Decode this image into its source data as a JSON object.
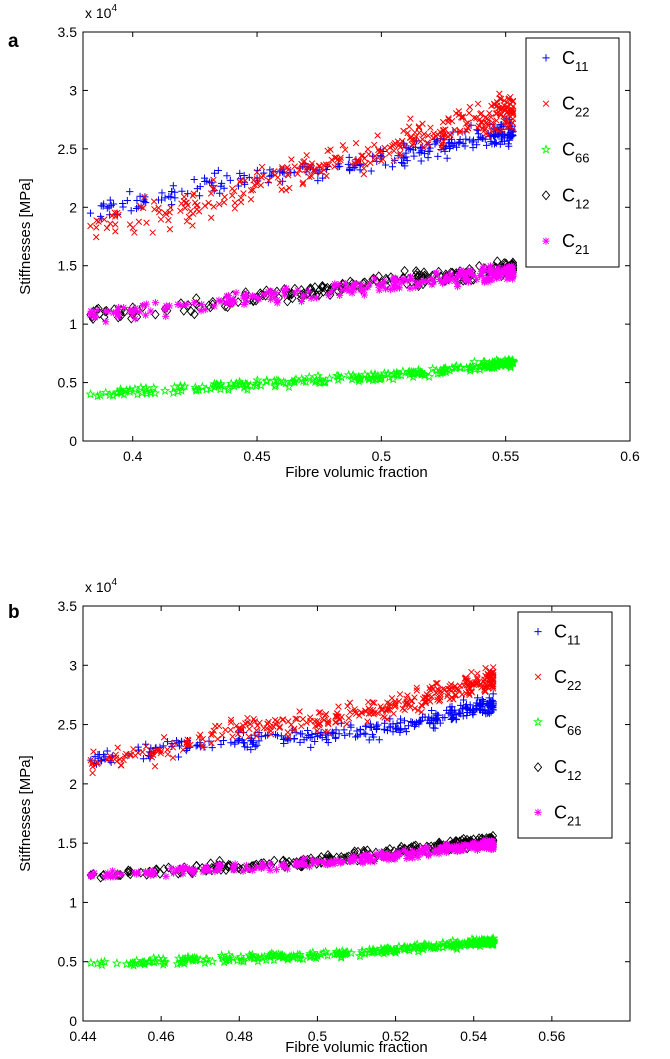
{
  "chart_data": [
    {
      "type": "scatter",
      "panel_label": "a",
      "xlabel": "Fibre volumic fraction",
      "ylabel": "Stiffnesses [MPa]",
      "y_exponent_label": "x 10",
      "y_exponent": "4",
      "xlim": [
        0.38,
        0.6
      ],
      "ylim": [
        0,
        35000
      ],
      "xticks": [
        0.4,
        0.45,
        0.5,
        0.55,
        0.6
      ],
      "xtick_labels": [
        "0.4",
        "0.45",
        "0.5",
        "0.55",
        "0.6"
      ],
      "yticks": [
        0,
        5000,
        10000,
        15000,
        20000,
        25000,
        30000,
        35000
      ],
      "ytick_labels": [
        "0",
        "0.5",
        "1",
        "1.5",
        "2",
        "2.5",
        "3",
        "3.5"
      ],
      "grid": false,
      "legend_position": "top-right",
      "series": [
        {
          "name": "C11",
          "sub": "11",
          "base": "C",
          "marker": "plus",
          "color": "#0000ff",
          "trend": [
            [
              0.383,
              19500
            ],
            [
              0.413,
              20800
            ],
            [
              0.426,
              21600
            ],
            [
              0.45,
              22500
            ],
            [
              0.475,
              23200
            ],
            [
              0.5,
              24300
            ],
            [
              0.525,
              25300
            ],
            [
              0.553,
              26500
            ]
          ],
          "n": 260,
          "x_range": [
            0.383,
            0.553
          ],
          "spread": 900
        },
        {
          "name": "C22",
          "sub": "22",
          "base": "C",
          "marker": "x",
          "color": "#ff0000",
          "trend": [
            [
              0.383,
              18400
            ],
            [
              0.413,
              19500
            ],
            [
              0.426,
              20200
            ],
            [
              0.45,
              22000
            ],
            [
              0.475,
              23500
            ],
            [
              0.5,
              24800
            ],
            [
              0.525,
              26600
            ],
            [
              0.553,
              28200
            ]
          ],
          "n": 320,
          "x_range": [
            0.383,
            0.553
          ],
          "spread": 1400
        },
        {
          "name": "C66",
          "sub": "66",
          "base": "C",
          "marker": "star",
          "color": "#00ff00",
          "trend": [
            [
              0.383,
              4000
            ],
            [
              0.413,
              4300
            ],
            [
              0.45,
              4900
            ],
            [
              0.5,
              5500
            ],
            [
              0.553,
              6700
            ]
          ],
          "n": 240,
          "x_range": [
            0.383,
            0.553
          ],
          "spread": 350
        },
        {
          "name": "C12",
          "sub": "12",
          "base": "C",
          "marker": "diamond",
          "color": "#000000",
          "trend": [
            [
              0.383,
              10800
            ],
            [
              0.413,
              11300
            ],
            [
              0.45,
              12300
            ],
            [
              0.5,
              13500
            ],
            [
              0.553,
              14800
            ]
          ],
          "n": 240,
          "x_range": [
            0.383,
            0.553
          ],
          "spread": 650
        },
        {
          "name": "C21",
          "sub": "21",
          "base": "C",
          "marker": "asterisk",
          "color": "#ff00ff",
          "trend": [
            [
              0.383,
              10800
            ],
            [
              0.413,
              11300
            ],
            [
              0.45,
              12300
            ],
            [
              0.5,
              13300
            ],
            [
              0.553,
              14500
            ]
          ],
          "n": 240,
          "x_range": [
            0.383,
            0.553
          ],
          "spread": 650
        }
      ]
    },
    {
      "type": "scatter",
      "panel_label": "b",
      "xlabel": "Fibre volumic fraction",
      "ylabel": "Stiffnesses [MPa]",
      "y_exponent_label": "x 10",
      "y_exponent": "4",
      "xlim": [
        0.44,
        0.58
      ],
      "ylim": [
        0,
        35000
      ],
      "xticks": [
        0.44,
        0.46,
        0.48,
        0.5,
        0.52,
        0.54,
        0.56
      ],
      "xtick_labels": [
        "0.44",
        "0.46",
        "0.48",
        "0.5",
        "0.52",
        "0.54",
        "0.56"
      ],
      "yticks": [
        0,
        5000,
        10000,
        15000,
        20000,
        25000,
        30000,
        35000
      ],
      "ytick_labels": [
        "0",
        "0.5",
        "1",
        "1.5",
        "2",
        "2.5",
        "3",
        "3.5"
      ],
      "grid": false,
      "legend_position": "top-right",
      "series": [
        {
          "name": "C11",
          "sub": "11",
          "base": "C",
          "marker": "plus",
          "color": "#0000ff",
          "trend": [
            [
              0.442,
              22000
            ],
            [
              0.457,
              22700
            ],
            [
              0.48,
              23800
            ],
            [
              0.5,
              24000
            ],
            [
              0.52,
              24700
            ],
            [
              0.545,
              26800
            ]
          ],
          "n": 300,
          "x_range": [
            0.442,
            0.545
          ],
          "spread": 700
        },
        {
          "name": "C22",
          "sub": "22",
          "base": "C",
          "marker": "x",
          "color": "#ff0000",
          "trend": [
            [
              0.442,
              22000
            ],
            [
              0.457,
              22500
            ],
            [
              0.48,
              24700
            ],
            [
              0.5,
              25300
            ],
            [
              0.52,
              26600
            ],
            [
              0.545,
              28800
            ]
          ],
          "n": 340,
          "x_range": [
            0.442,
            0.545
          ],
          "spread": 900
        },
        {
          "name": "C66",
          "sub": "66",
          "base": "C",
          "marker": "star",
          "color": "#00ff00",
          "trend": [
            [
              0.442,
              4900
            ],
            [
              0.457,
              5000
            ],
            [
              0.5,
              5500
            ],
            [
              0.545,
              6700
            ]
          ],
          "n": 280,
          "x_range": [
            0.442,
            0.545
          ],
          "spread": 280
        },
        {
          "name": "C12",
          "sub": "12",
          "base": "C",
          "marker": "diamond",
          "color": "#000000",
          "trend": [
            [
              0.442,
              12300
            ],
            [
              0.457,
              12600
            ],
            [
              0.5,
              13500
            ],
            [
              0.545,
              15200
            ]
          ],
          "n": 280,
          "x_range": [
            0.442,
            0.545
          ],
          "spread": 380
        },
        {
          "name": "C21",
          "sub": "21",
          "base": "C",
          "marker": "asterisk",
          "color": "#ff00ff",
          "trend": [
            [
              0.442,
              12300
            ],
            [
              0.457,
              12500
            ],
            [
              0.5,
              13300
            ],
            [
              0.545,
              14900
            ]
          ],
          "n": 280,
          "x_range": [
            0.442,
            0.545
          ],
          "spread": 380
        }
      ]
    }
  ]
}
